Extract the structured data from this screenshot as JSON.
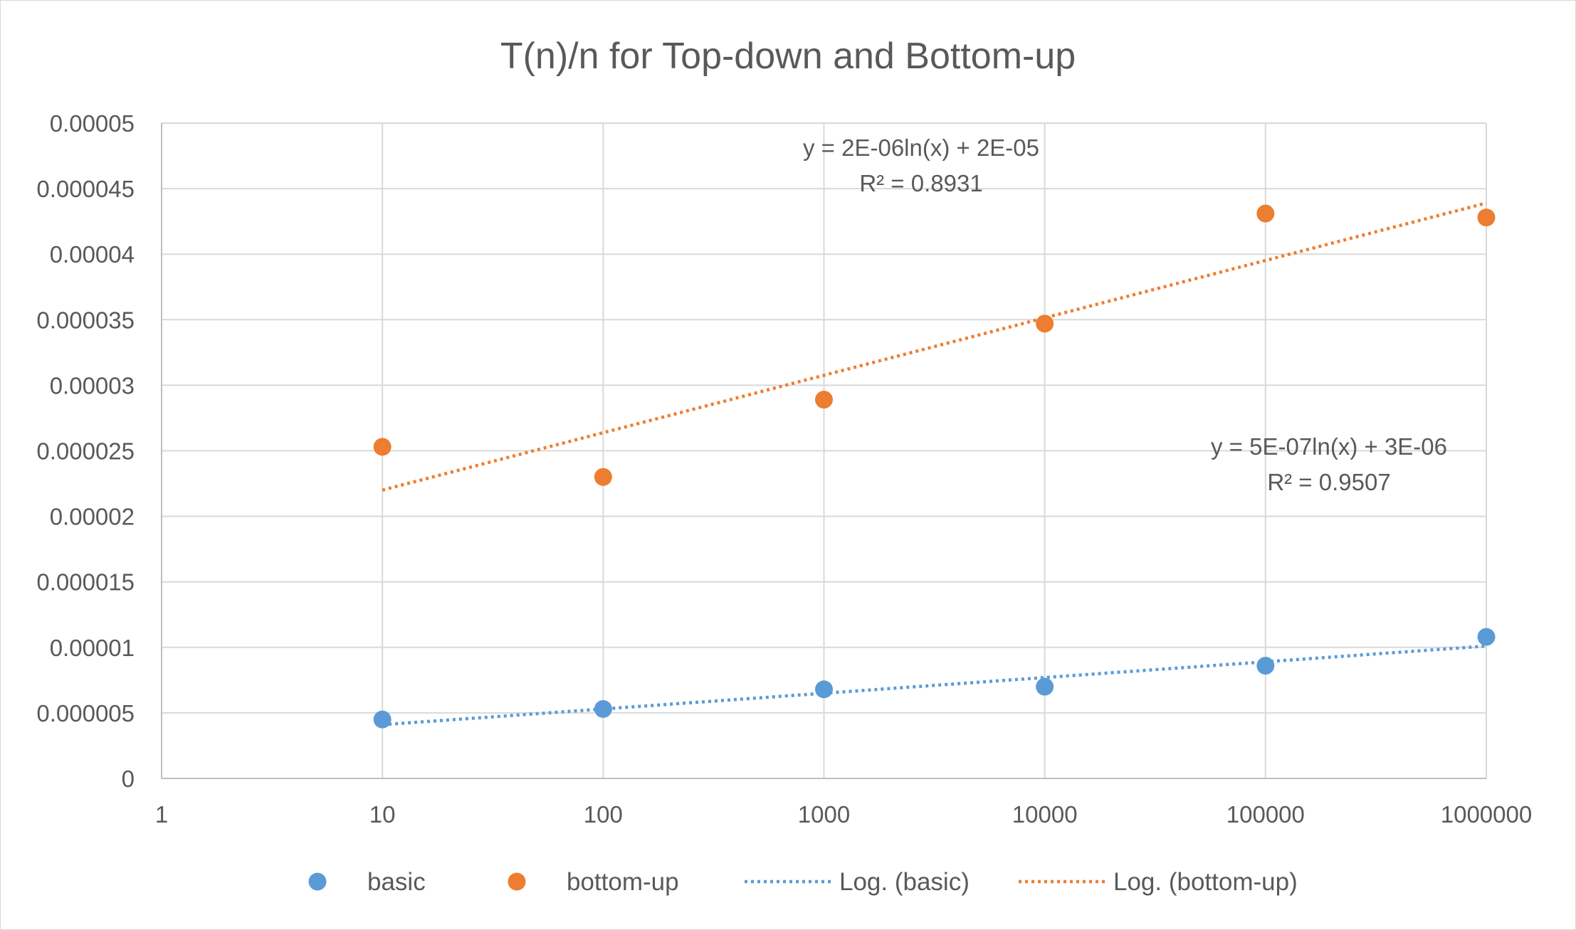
{
  "chart_data": {
    "type": "scatter",
    "title": "T(n)/n for Top-down and Bottom-up",
    "xlabel": "",
    "ylabel": "",
    "x_scale": "log",
    "xlim": [
      1,
      1000000
    ],
    "ylim": [
      0,
      5e-05
    ],
    "grid": true,
    "legend_position": "bottom",
    "x_tick_labels": [
      "1",
      "10",
      "100",
      "1000",
      "10000",
      "100000",
      "1000000"
    ],
    "y_tick_labels": [
      "0",
      "0.000005",
      "0.00001",
      "0.000015",
      "0.00002",
      "0.000025",
      "0.00003",
      "0.000035",
      "0.00004",
      "0.000045",
      "0.00005"
    ],
    "series": [
      {
        "name": "basic",
        "color": "#5b9bd5",
        "x": [
          10,
          100,
          1000,
          10000,
          100000,
          1000000
        ],
        "y": [
          4.5e-06,
          5.3e-06,
          6.8e-06,
          7e-06,
          8.6e-06,
          1.08e-05
        ]
      },
      {
        "name": "bottom-up",
        "color": "#ed7d31",
        "x": [
          10,
          100,
          1000,
          10000,
          100000,
          1000000
        ],
        "y": [
          2.53e-05,
          2.3e-05,
          2.89e-05,
          3.47e-05,
          4.31e-05,
          4.28e-05
        ]
      }
    ],
    "trendlines": [
      {
        "name": "Log. (basic)",
        "of_series": "basic",
        "kind": "logarithmic",
        "color": "#5b9bd5",
        "x_range": [
          10,
          1000000
        ],
        "y_start": 4.1e-06,
        "y_end": 1.01e-05,
        "equation": "y = 5E-07ln(x) + 3E-06",
        "r_squared": "R² = 0.9507"
      },
      {
        "name": "Log. (bottom-up)",
        "of_series": "bottom-up",
        "kind": "logarithmic",
        "color": "#ed7d31",
        "x_range": [
          10,
          1000000
        ],
        "y_start": 2.2e-05,
        "y_end": 4.39e-05,
        "equation": "y = 2E-06ln(x) + 2E-05",
        "r_squared": "R² = 0.8931"
      }
    ],
    "legend": [
      {
        "label": "basic",
        "kind": "marker",
        "color": "#5b9bd5"
      },
      {
        "label": "bottom-up",
        "kind": "marker",
        "color": "#ed7d31"
      },
      {
        "label": "Log. (basic)",
        "kind": "line",
        "color": "#5b9bd5"
      },
      {
        "label": "Log. (bottom-up)",
        "kind": "line",
        "color": "#ed7d31"
      }
    ]
  }
}
